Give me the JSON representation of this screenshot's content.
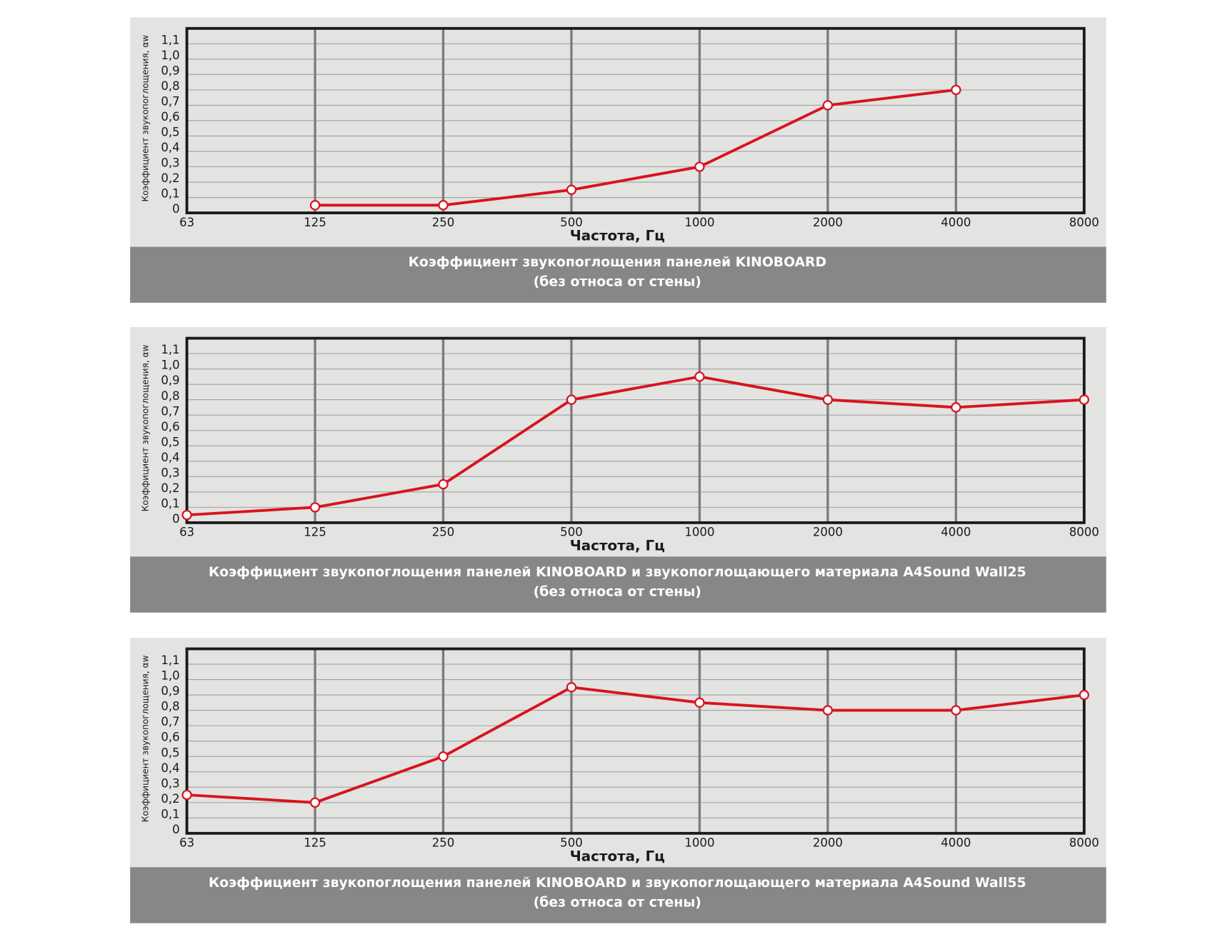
{
  "chart_data": [
    {
      "type": "line",
      "title": "Коэффициент звукопоглощения панелей KINOBOARD",
      "subtitle": "(без относа от стены)",
      "x_label": "Частота, Гц",
      "y_label": "Коэффициент звукопоглощения, αw",
      "categories": [
        "63",
        "125",
        "250",
        "500",
        "1000",
        "2000",
        "4000",
        "8000"
      ],
      "values": [
        null,
        0.05,
        0.05,
        0.15,
        0.3,
        0.7,
        0.8,
        null
      ],
      "color": "#d7141e",
      "ylim": [
        0,
        1.2
      ],
      "yticks": [
        0,
        {
          "value": 0.1,
          "label": "0,1"
        },
        {
          "value": 0.2,
          "label": "0,2"
        },
        {
          "value": 0.3,
          "label": "0,3"
        },
        {
          "value": 0.4,
          "label": "0,4"
        },
        {
          "value": 0.5,
          "label": "0,5"
        },
        {
          "value": 0.6,
          "label": "0,6"
        },
        {
          "value": 0.7,
          "label": "0,7"
        },
        {
          "value": 0.8,
          "label": "0,8"
        },
        {
          "value": 0.9,
          "label": "0,9"
        },
        {
          "value": 1.0,
          "label": "1,0"
        },
        {
          "value": 1.1,
          "label": "1,1"
        }
      ],
      "grid": true
    },
    {
      "type": "line",
      "title": "Коэффициент звукопоглощения панелей KINOBOARD и звукопоглощающего материала  A4Sound Wall25",
      "subtitle": "(без относа от стены)",
      "x_label": "Частота, Гц",
      "y_label": "Коэффициент звукопоглощения, αw",
      "categories": [
        "63",
        "125",
        "250",
        "500",
        "1000",
        "2000",
        "4000",
        "8000"
      ],
      "values": [
        0.05,
        0.1,
        0.25,
        0.8,
        0.95,
        0.8,
        0.75,
        0.8
      ],
      "color": "#d7141e",
      "ylim": [
        0,
        1.2
      ],
      "yticks": [
        0,
        {
          "value": 0.1,
          "label": "0,1"
        },
        {
          "value": 0.2,
          "label": "0,2"
        },
        {
          "value": 0.3,
          "label": "0,3"
        },
        {
          "value": 0.4,
          "label": "0,4"
        },
        {
          "value": 0.5,
          "label": "0,5"
        },
        {
          "value": 0.6,
          "label": "0,6"
        },
        {
          "value": 0.7,
          "label": "0,7"
        },
        {
          "value": 0.8,
          "label": "0,8"
        },
        {
          "value": 0.9,
          "label": "0,9"
        },
        {
          "value": 1.0,
          "label": "1,0"
        },
        {
          "value": 1.1,
          "label": "1,1"
        }
      ],
      "grid": true
    },
    {
      "type": "line",
      "title": "Коэффициент звукопоглощения панелей KINOBOARD и звукопоглощающего материала  A4Sound Wall55",
      "subtitle": "(без относа от стены)",
      "x_label": "Частота, Гц",
      "y_label": "Коэффициент звукопоглощения, αw",
      "categories": [
        "63",
        "125",
        "250",
        "500",
        "1000",
        "2000",
        "4000",
        "8000"
      ],
      "values": [
        0.25,
        0.2,
        0.5,
        0.95,
        0.85,
        0.8,
        0.8,
        0.9
      ],
      "color": "#d7141e",
      "ylim": [
        0,
        1.2
      ],
      "yticks": [
        0,
        {
          "value": 0.1,
          "label": "0,1"
        },
        {
          "value": 0.2,
          "label": "0,2"
        },
        {
          "value": 0.3,
          "label": "0,3"
        },
        {
          "value": 0.4,
          "label": "0,4"
        },
        {
          "value": 0.5,
          "label": "0,5"
        },
        {
          "value": 0.6,
          "label": "0,6"
        },
        {
          "value": 0.7,
          "label": "0,7"
        },
        {
          "value": 0.8,
          "label": "0,8"
        },
        {
          "value": 0.9,
          "label": "0,9"
        },
        {
          "value": 1.0,
          "label": "1,0"
        },
        {
          "value": 1.1,
          "label": "1,1"
        }
      ],
      "grid": true
    }
  ]
}
